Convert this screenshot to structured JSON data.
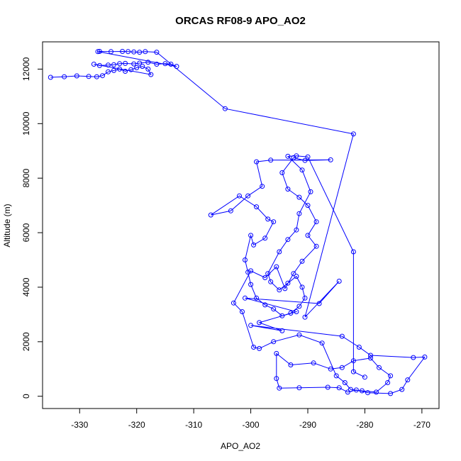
{
  "chart_data": {
    "type": "scatter",
    "title": "ORCAS RF08-9 APO_AO2",
    "xlabel": "APO_AO2",
    "ylabel": "Altitude (m)",
    "xlim": [
      -336.5,
      -267.0
    ],
    "ylim": [
      -450,
      13000
    ],
    "xticks": [
      -330,
      -320,
      -310,
      -300,
      -290,
      -280,
      -270
    ],
    "yticks": [
      0,
      2000,
      4000,
      6000,
      8000,
      10000,
      12000
    ],
    "grid": false,
    "legend": "none",
    "colors": {
      "series": "#0000ff",
      "axes": "#000000"
    },
    "series": [
      {
        "style": "line+circle",
        "points": [
          [
            -335.1,
            11700
          ],
          [
            -332.7,
            11720
          ],
          [
            -330.5,
            11750
          ],
          [
            -328.4,
            11730
          ],
          [
            -327.0,
            11720
          ],
          [
            -326.0,
            11760
          ],
          [
            -325.0,
            11900
          ],
          [
            -324.0,
            11950
          ],
          [
            -323.0,
            12000
          ],
          [
            -322.0,
            11920
          ],
          [
            -321.0,
            11980
          ],
          [
            -320.0,
            12050
          ],
          [
            -319.0,
            12100
          ],
          [
            -318.0,
            12000
          ],
          [
            -317.5,
            11800
          ],
          [
            -327.5,
            12180
          ],
          [
            -326.5,
            12130
          ],
          [
            -325.0,
            12150
          ],
          [
            -324.0,
            12160
          ],
          [
            -323.0,
            12200
          ],
          [
            -322.0,
            12210
          ],
          [
            -320.5,
            12190
          ],
          [
            -319.5,
            12220
          ],
          [
            -318.0,
            12250
          ],
          [
            -316.5,
            12180
          ],
          [
            -315.0,
            12200
          ],
          [
            -314.0,
            12180
          ],
          [
            -313.0,
            12100
          ],
          [
            -326.8,
            12640
          ],
          [
            -326.5,
            12650
          ],
          [
            -324.5,
            12640
          ],
          [
            -322.5,
            12650
          ],
          [
            -321.5,
            12640
          ],
          [
            -320.5,
            12630
          ],
          [
            -319.5,
            12620
          ],
          [
            -318.5,
            12640
          ],
          [
            -316.5,
            12620
          ],
          [
            -304.5,
            10550
          ],
          [
            -282.0,
            9620
          ],
          [
            -290.5,
            2900
          ],
          [
            -284.5,
            4220
          ],
          [
            -288.0,
            3400
          ],
          [
            -301.0,
            3600
          ],
          [
            -292.0,
            3100
          ],
          [
            -298.5,
            2700
          ],
          [
            -294.5,
            2400
          ],
          [
            -300.0,
            2600
          ],
          [
            -284.0,
            2200
          ],
          [
            -281.0,
            1800
          ],
          [
            -279.0,
            1500
          ],
          [
            -271.5,
            1420
          ],
          [
            -269.5,
            1440
          ],
          [
            -272.5,
            600
          ],
          [
            -273.5,
            250
          ],
          [
            -275.5,
            100
          ],
          [
            -279.5,
            130
          ],
          [
            -281.5,
            230
          ],
          [
            -283.0,
            150
          ],
          [
            -284.5,
            310
          ],
          [
            -286.5,
            330
          ],
          [
            -291.5,
            310
          ],
          [
            -295.0,
            300
          ],
          [
            -295.5,
            650
          ],
          [
            -295.5,
            1570
          ],
          [
            -293.0,
            1150
          ],
          [
            -289.0,
            1220
          ],
          [
            -286.0,
            1000
          ],
          [
            -284.0,
            1050
          ],
          [
            -282.0,
            1300
          ],
          [
            -279.0,
            1400
          ],
          [
            -277.5,
            1050
          ],
          [
            -275.5,
            750
          ],
          [
            -276.0,
            500
          ],
          [
            -278.0,
            150
          ],
          [
            -280.5,
            200
          ],
          [
            -282.5,
            250
          ],
          [
            -283.5,
            500
          ],
          [
            -285.0,
            750
          ],
          [
            -287.5,
            1950
          ],
          [
            -291.5,
            2250
          ],
          [
            -296.0,
            2000
          ],
          [
            -298.5,
            1750
          ],
          [
            -299.5,
            1800
          ],
          [
            -301.5,
            3100
          ],
          [
            -303.0,
            3420
          ],
          [
            -300.0,
            4600
          ],
          [
            -297.5,
            4350
          ],
          [
            -295.5,
            4750
          ],
          [
            -294.0,
            3950
          ],
          [
            -292.5,
            4500
          ],
          [
            -291.0,
            4950
          ],
          [
            -288.5,
            5500
          ],
          [
            -290.0,
            5900
          ],
          [
            -288.5,
            6400
          ],
          [
            -290.0,
            7000
          ],
          [
            -291.5,
            7300
          ],
          [
            -293.5,
            7600
          ],
          [
            -294.5,
            8200
          ],
          [
            -292.5,
            8750
          ],
          [
            -290.5,
            8650
          ],
          [
            -286.0,
            8670
          ],
          [
            -296.5,
            8660
          ],
          [
            -299.0,
            8600
          ],
          [
            -298.0,
            7700
          ],
          [
            -300.5,
            7350
          ],
          [
            -303.5,
            6800
          ],
          [
            -307.0,
            6650
          ],
          [
            -302.0,
            7350
          ],
          [
            -299.0,
            6950
          ],
          [
            -297.0,
            6500
          ],
          [
            -296.0,
            6400
          ],
          [
            -297.5,
            5800
          ],
          [
            -299.5,
            5550
          ],
          [
            -300.0,
            5900
          ],
          [
            -301.0,
            5000
          ],
          [
            -300.5,
            4550
          ],
          [
            -300.0,
            4100
          ],
          [
            -299.0,
            3600
          ],
          [
            -297.5,
            3350
          ],
          [
            -296.0,
            3200
          ],
          [
            -294.5,
            2950
          ],
          [
            -293.0,
            3050
          ],
          [
            -291.5,
            3300
          ],
          [
            -290.5,
            3600
          ],
          [
            -291.0,
            4000
          ],
          [
            -292.0,
            4400
          ],
          [
            -293.5,
            4150
          ],
          [
            -295.0,
            3900
          ],
          [
            -296.5,
            4200
          ],
          [
            -297.0,
            4500
          ],
          [
            -295.0,
            5300
          ],
          [
            -293.5,
            5750
          ],
          [
            -292.0,
            6100
          ],
          [
            -291.5,
            6700
          ],
          [
            -289.5,
            7500
          ],
          [
            -291.0,
            8300
          ],
          [
            -293.5,
            8800
          ],
          [
            -292.0,
            8820
          ],
          [
            -290.0,
            8780
          ],
          [
            -282.0,
            5300
          ],
          [
            -282.0,
            900
          ],
          [
            -280.0,
            700
          ]
        ]
      }
    ]
  }
}
